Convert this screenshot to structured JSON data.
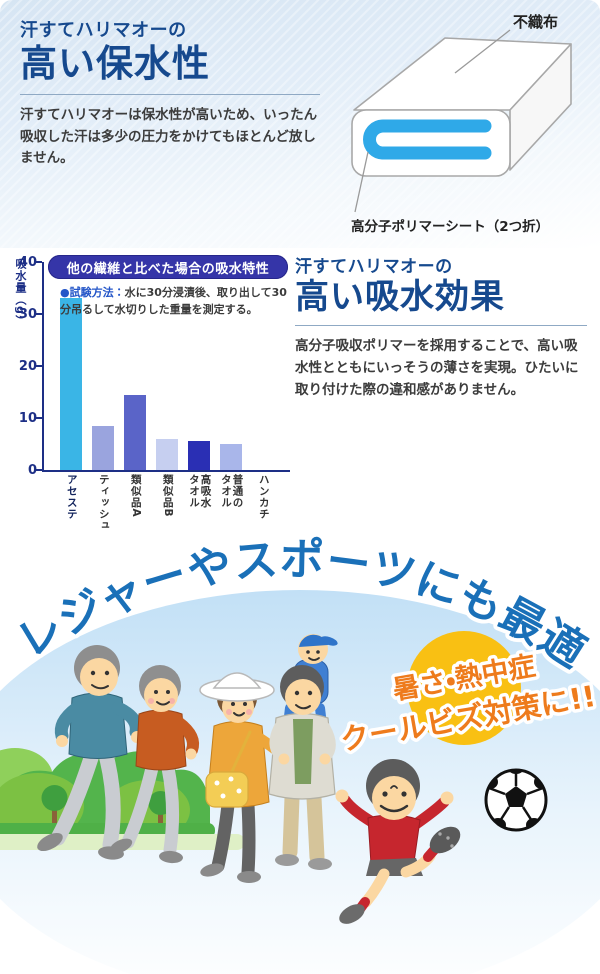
{
  "retention": {
    "brand_line": "汗すてハリマオーの",
    "title": "高い保水性",
    "body": "汗すてハリマオーは保水性が高いため、いったん吸収した汗は多少の圧力をかけてもほとんど放しません。"
  },
  "diagram": {
    "label_top": "不織布",
    "caption": "高分子ポリマーシート（2つ折）",
    "sheet_color": "#2fa9e8"
  },
  "absorption": {
    "brand_line": "汗すてハリマオーの",
    "title": "高い吸水効果",
    "body": "高分子吸収ポリマーを採用することで、高い吸水性とともにいっそうの薄さを実現。ひたいに取り付けた際の違和感がありません。"
  },
  "chart_data": {
    "type": "bar",
    "title": "他の繊維と比べた場合の吸水特性",
    "note_label": "●試験方法：",
    "note_text": "水に30分浸漬後、取り出して30分吊るして水切りした重量を測定する。",
    "ylabel": "吸水量（g）",
    "xlabel": "",
    "ylim": [
      0,
      40
    ],
    "yticks": [
      0,
      10,
      20,
      30,
      40
    ],
    "categories": [
      "アセステ",
      "ティッシュ",
      "類似品A",
      "類似品B",
      "高吸水\nタオル",
      "普通の\nタオル",
      "ハンカチ"
    ],
    "values": [
      33,
      8.5,
      14.5,
      6,
      5.5,
      5,
      0
    ],
    "bar_colors": [
      "#3ab5e6",
      "#9aa4de",
      "#5a64c8",
      "#c6cff0",
      "#2a2fb4",
      "#a9b6ea",
      "#9aa4de"
    ],
    "emphasis_index": 0,
    "grid": false,
    "legend": "none"
  },
  "bottom": {
    "arc_title": "レジャーやスポーツにも最適",
    "badge_line1": "暑さ・熱中症",
    "badge_line2": "クールビズ対策に!!"
  },
  "colors": {
    "heading_navy": "#16498e",
    "axis_navy": "#1d2f86",
    "title_pill_bg": "#3535a8",
    "arc_blue": "#1a70b8",
    "badge_orange": "#ee7b1c",
    "sun_yellow": "#f9c013",
    "polymer_blue": "#2fa9e8"
  }
}
